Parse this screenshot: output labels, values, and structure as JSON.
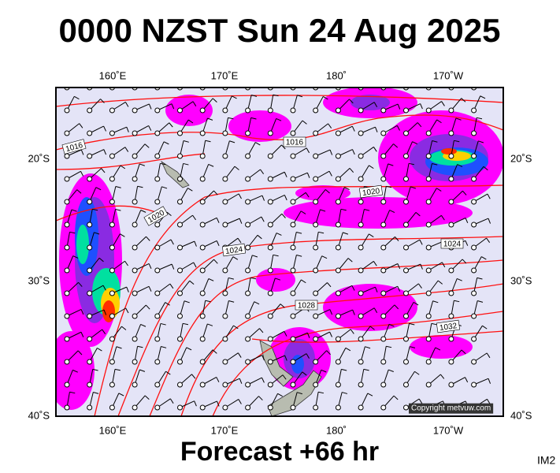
{
  "header": {
    "title": "0000 NZST Sun 24 Aug 2025"
  },
  "map": {
    "longitude_labels": [
      "160˚E",
      "170˚E",
      "180˚",
      "170˚W"
    ],
    "latitude_labels": [
      "20˚S",
      "30˚S",
      "40˚S"
    ],
    "isobar_labels": [
      "1016",
      "1016",
      "1020",
      "1020",
      "1024",
      "1024",
      "1028",
      "1032"
    ],
    "copyright": "Copyright metvuw.com"
  },
  "footer": {
    "forecast": "Forecast +66 hr",
    "code": "IM2"
  }
}
